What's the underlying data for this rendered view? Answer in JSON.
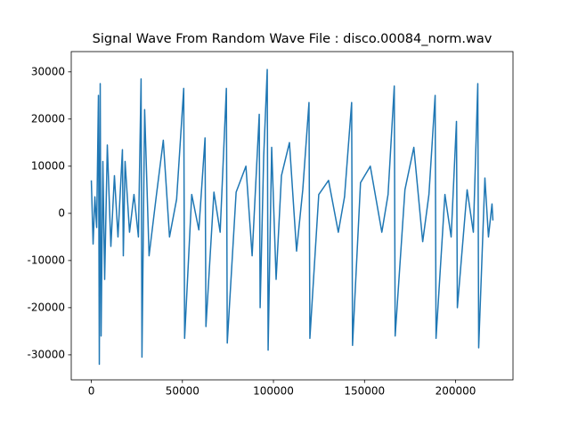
{
  "chart_data": {
    "type": "line",
    "title": "Signal Wave From Random Wave File : disco.00084_norm.wav",
    "x": [
      0,
      976,
      1951,
      2927,
      3902,
      4390,
      4878,
      5366,
      6341,
      7317,
      8780,
      10732,
      12683,
      14634,
      17073,
      17561,
      18537,
      20976,
      23415,
      25854,
      27317,
      27805,
      29268,
      31707,
      35610,
      39512,
      42927,
      46829,
      50732,
      51220,
      55122,
      59024,
      62439,
      62927,
      67317,
      70732,
      74146,
      74634,
      79512,
      84878,
      88293,
      92195,
      92683,
      94634,
      96585,
      97073,
      99024,
      101463,
      104390,
      108780,
      112683,
      116098,
      119512,
      120000,
      124878,
      130244,
      135610,
      139024,
      142927,
      143415,
      147805,
      153171,
      159512,
      162927,
      166341,
      166829,
      172195,
      177073,
      181951,
      185366,
      188780,
      189268,
      194146,
      197561,
      200488,
      200976,
      206341,
      209756,
      212195,
      212683,
      216098,
      218049,
      220000,
      220500
    ],
    "series": [
      {
        "color": "#1f77b4",
        "values": [
          7000,
          -6500,
          3500,
          -3000,
          25000,
          -32000,
          27500,
          -26000,
          11000,
          -14000,
          14500,
          -7000,
          8000,
          -5000,
          13500,
          -9000,
          11000,
          -4000,
          4000,
          -5000,
          28500,
          -30500,
          22000,
          -9000,
          3500,
          15500,
          -5000,
          3000,
          26500,
          -26500,
          4000,
          -3500,
          16000,
          -24000,
          4500,
          -4000,
          26500,
          -27500,
          4500,
          10000,
          -9000,
          21000,
          -20000,
          12000,
          30500,
          -29000,
          14000,
          -14000,
          8000,
          15000,
          -8000,
          5000,
          23500,
          -26500,
          4000,
          7000,
          -4000,
          3500,
          23500,
          -28000,
          6500,
          10000,
          -4000,
          4000,
          27000,
          -26000,
          5000,
          14000,
          -6000,
          4000,
          25000,
          -26500,
          4000,
          -5000,
          19500,
          -20000,
          5000,
          -4000,
          27500,
          -28500,
          7500,
          -5000,
          2000,
          -1500
        ]
      }
    ],
    "xlim": [
      -11025,
      231525
    ],
    "ylim": [
      -35300,
      34300
    ],
    "xticks": [
      0,
      50000,
      100000,
      150000,
      200000
    ],
    "yticks": [
      -30000,
      -20000,
      -10000,
      0,
      10000,
      20000,
      30000
    ]
  }
}
